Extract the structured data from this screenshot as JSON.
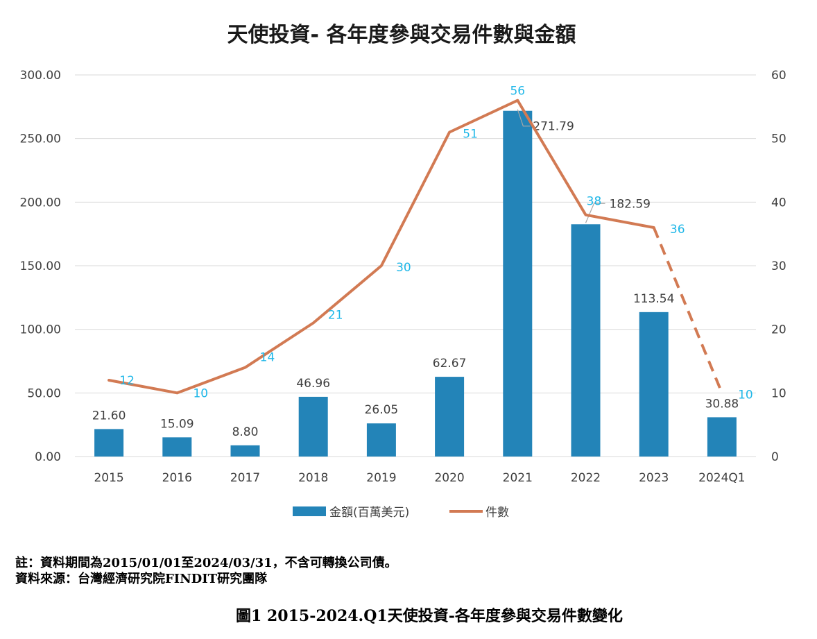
{
  "chart_data": {
    "type": "bar",
    "title": "天使投資- 各年度參與交易件數與金額",
    "categories": [
      "2015",
      "2016",
      "2017",
      "2018",
      "2019",
      "2020",
      "2021",
      "2022",
      "2023",
      "2024Q1"
    ],
    "series": [
      {
        "name": "金額(百萬美元)",
        "type": "bar",
        "axis": "left",
        "values": [
          21.6,
          15.09,
          8.8,
          46.96,
          26.05,
          62.67,
          271.79,
          182.59,
          113.54,
          30.88
        ],
        "labels": [
          "21.60",
          "15.09",
          "8.80",
          "46.96",
          "26.05",
          "62.67",
          "271.79",
          "182.59",
          "113.54",
          "30.88"
        ]
      },
      {
        "name": "件數",
        "type": "line",
        "axis": "right",
        "values": [
          12,
          10,
          14,
          21,
          30,
          51,
          56,
          38,
          36,
          10
        ],
        "labels": [
          "12",
          "10",
          "14",
          "21",
          "30",
          "51",
          "56",
          "38",
          "36",
          "10"
        ],
        "dashed_last_segment": true
      }
    ],
    "y_left": {
      "range": [
        0,
        300
      ],
      "ticks": [
        "0.00",
        "50.00",
        "100.00",
        "150.00",
        "200.00",
        "250.00",
        "300.00"
      ]
    },
    "y_right": {
      "range": [
        0,
        60
      ],
      "ticks": [
        "0",
        "10",
        "20",
        "30",
        "40",
        "50",
        "60"
      ]
    },
    "grid": true,
    "legend": "bottom",
    "colors": {
      "bar": "#2384b8",
      "line": "#d27a53",
      "count_label": "#1fb7e8",
      "text": "#404040",
      "grid": "#d9d9d9"
    }
  },
  "notes": {
    "note1": "註：資料期間為2015/01/01至2024/03/31，不含可轉換公司債。",
    "note2": "資料來源：台灣經濟研究院FINDIT研究團隊"
  },
  "caption": "圖1  2015-2024.Q1天使投資-各年度參與交易件數變化"
}
